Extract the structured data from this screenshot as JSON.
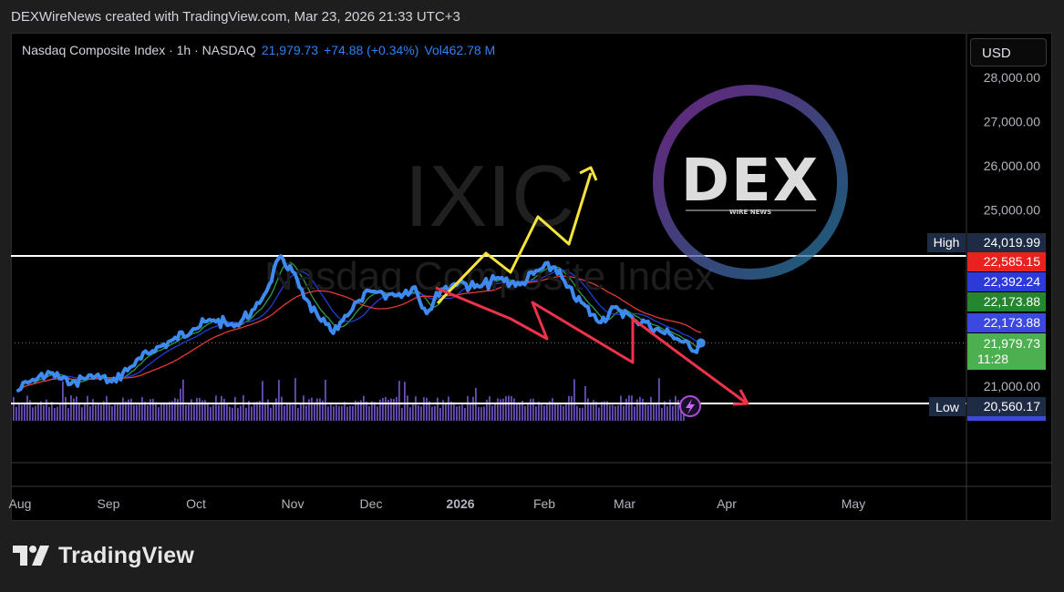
{
  "header": {
    "attribution": "DEXWireNews created with TradingView.com, Mar 23, 2026 21:33 UTC+3"
  },
  "legend": {
    "symbol_name": "Nasdaq Composite Index · 1h · NASDAQ",
    "last": "21,979.73",
    "change": "+74.88 (+0.34%)",
    "volume": "Vol462.78 M"
  },
  "currency_button": "USD",
  "watermark": {
    "ticker": "IXIC",
    "name": "Nasdaq Composite Index"
  },
  "logo_badge": {
    "main": "DEX",
    "sub": "WIRE NEWS"
  },
  "footer": {
    "brand": "TradingView"
  },
  "colors": {
    "price_line": "#3d8bf0",
    "ema_red": "#e53935",
    "ema_blue": "#1d3fd8",
    "ema_green": "#2e9b4a",
    "arrow_red": "#f0334a",
    "arrow_yellow": "#f7e43a",
    "volume": "#7a5cd8",
    "high_low_line": "#ffffff"
  },
  "chart_data": {
    "type": "line",
    "title": "Nasdaq Composite Index · 1h · NASDAQ",
    "x_axis": {
      "ticks": [
        "Aug",
        "Sep",
        "Oct",
        "Nov",
        "Dec",
        "2026",
        "Feb",
        "Mar",
        "Apr",
        "May"
      ],
      "range": [
        "2025-08-01",
        "2026-05-31"
      ]
    },
    "y_axis": {
      "ticks": [
        "28,000.00",
        "27,000.00",
        "26,000.00",
        "25,000.00",
        "21,000.00"
      ],
      "ylim": [
        20150,
        28200
      ],
      "grid": false
    },
    "series": [
      {
        "role": "price",
        "x": [
          "2025-08-01",
          "2025-08-06",
          "2025-08-12",
          "2025-08-19",
          "2025-08-26",
          "2025-09-02",
          "2025-09-09",
          "2025-09-16",
          "2025-09-23",
          "2025-09-30",
          "2025-10-07",
          "2025-10-14",
          "2025-10-21",
          "2025-10-26",
          "2025-10-30",
          "2025-11-03",
          "2025-11-07",
          "2025-11-12",
          "2025-11-17",
          "2025-11-21",
          "2025-11-26",
          "2025-12-01",
          "2025-12-08",
          "2025-12-15",
          "2025-12-19",
          "2025-12-24",
          "2025-12-30",
          "2026-01-06",
          "2026-01-13",
          "2026-01-20",
          "2026-01-27",
          "2026-02-01",
          "2026-02-05",
          "2026-02-10",
          "2026-02-16",
          "2026-02-22",
          "2026-02-28",
          "2026-03-04",
          "2026-03-09",
          "2026-03-13",
          "2026-03-17",
          "2026-03-20",
          "2026-03-23"
        ],
        "values": [
          20900,
          21150,
          21300,
          21050,
          21250,
          21100,
          21450,
          21800,
          22050,
          22300,
          22500,
          22350,
          22750,
          23300,
          23950,
          23600,
          23000,
          22550,
          22200,
          22600,
          22950,
          23150,
          23050,
          23250,
          22650,
          23200,
          23350,
          23250,
          23450,
          23300,
          23650,
          23700,
          23250,
          22900,
          22450,
          22800,
          22500,
          22450,
          22250,
          22150,
          22000,
          21800,
          21979.73
        ]
      }
    ],
    "moving_average_labels": [
      "22,585.15",
      "22,392.24",
      "22,173.88",
      "22,173.88"
    ],
    "price_labels": {
      "high_tag": "High",
      "high": "24,019.99",
      "low_tag": "Low",
      "low": "20,560.17",
      "last": "21,979.73",
      "countdown": "11:28"
    },
    "annotations": [
      {
        "type": "arrow",
        "color": "yellow",
        "direction": "up",
        "from": [
          "2025-12-22",
          23000
        ],
        "to": [
          "2026-02-18",
          26000
        ]
      },
      {
        "type": "arrow",
        "color": "red",
        "direction": "down",
        "from": [
          "2025-12-22",
          23250
        ],
        "to": [
          "2026-04-01",
          20500
        ]
      }
    ]
  }
}
